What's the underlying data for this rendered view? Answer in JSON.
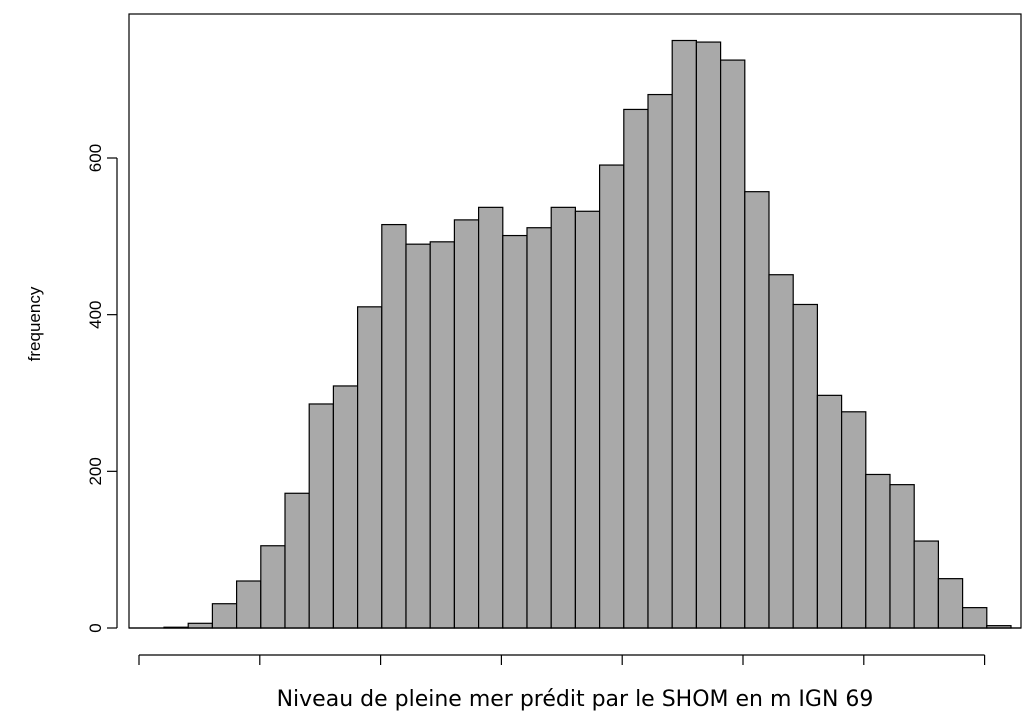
{
  "chart_data": {
    "type": "bar",
    "title": "",
    "xlabel": "Niveau de pleine mer prédit par le SHOM en m IGN 69",
    "ylabel": "frequency",
    "ylim": [
      0,
      750
    ],
    "yticks": [
      0,
      200,
      400,
      600
    ],
    "ytick_labels": [
      "0",
      "200",
      "400",
      "600"
    ],
    "xticks_count": 8,
    "grid": false,
    "bar_color": "#a9a9a9",
    "values": [
      1,
      6,
      31,
      60,
      105,
      172,
      286,
      309,
      410,
      515,
      490,
      493,
      521,
      537,
      501,
      511,
      537,
      532,
      591,
      662,
      681,
      750,
      748,
      725,
      557,
      451,
      413,
      297,
      276,
      196,
      183,
      111,
      63,
      26,
      3
    ]
  }
}
